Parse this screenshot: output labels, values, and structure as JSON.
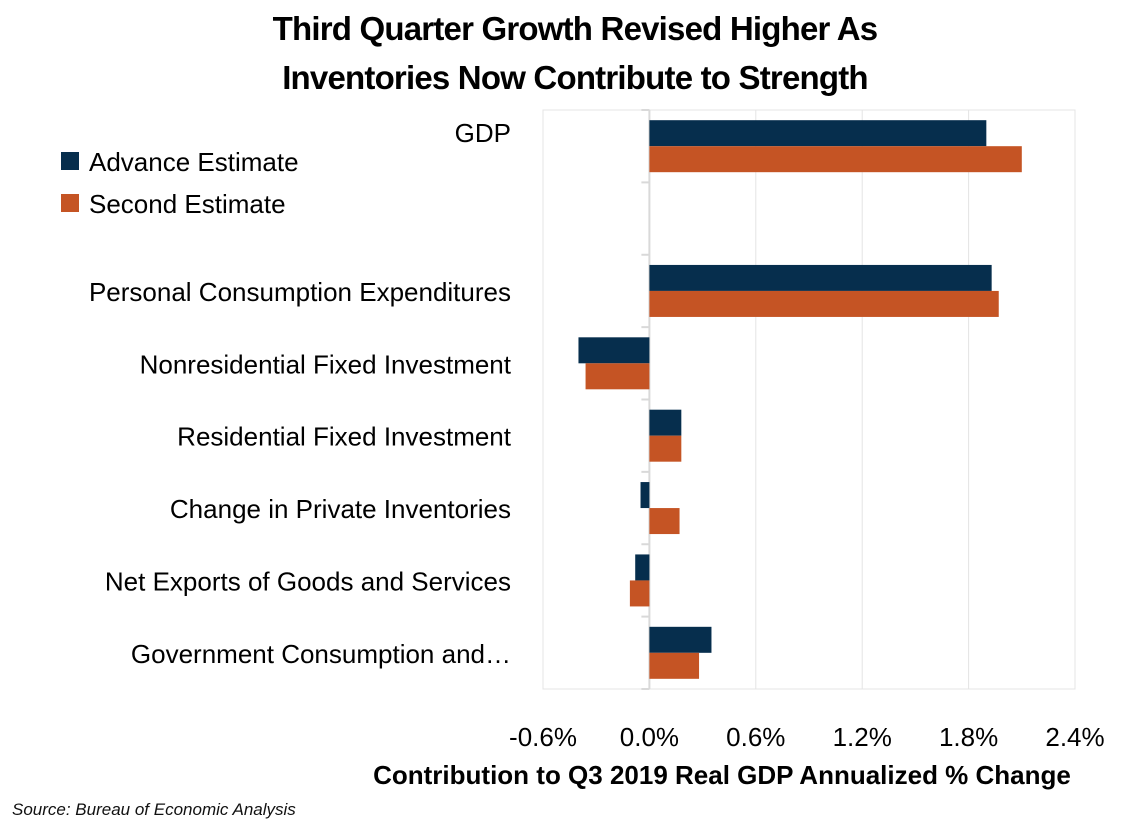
{
  "chart_data": {
    "type": "bar",
    "orientation": "horizontal",
    "title": [
      "Third Quarter Growth Revised Higher As",
      "Inventories Now Contribute to Strength"
    ],
    "xlabel": "Contribution to Q3 2019 Real GDP Annualized % Change",
    "ylabel": "",
    "categories": [
      "GDP",
      "",
      "Personal Consumption Expenditures",
      "Nonresidential Fixed Investment",
      "Residential Fixed Investment",
      "Change in Private Inventories",
      "Net Exports of Goods and Services",
      "Government Consumption and…"
    ],
    "series": [
      {
        "name": "Advance Estimate",
        "color": "#062e4d",
        "values": [
          1.9,
          null,
          1.93,
          -0.4,
          0.18,
          -0.05,
          -0.08,
          0.35
        ]
      },
      {
        "name": "Second Estimate",
        "color": "#c55424",
        "values": [
          2.1,
          null,
          1.97,
          -0.36,
          0.18,
          0.17,
          -0.11,
          0.28
        ]
      }
    ],
    "xlim": [
      -0.6,
      2.4
    ],
    "xticks": [
      -0.6,
      0.0,
      0.6,
      1.2,
      1.8,
      2.4
    ],
    "xtick_labels": [
      "-0.6%",
      "0.0%",
      "0.6%",
      "1.2%",
      "1.8%",
      "2.4%"
    ],
    "grid": true,
    "legend": "top-left",
    "source": "Source: Bureau of Economic Analysis"
  }
}
